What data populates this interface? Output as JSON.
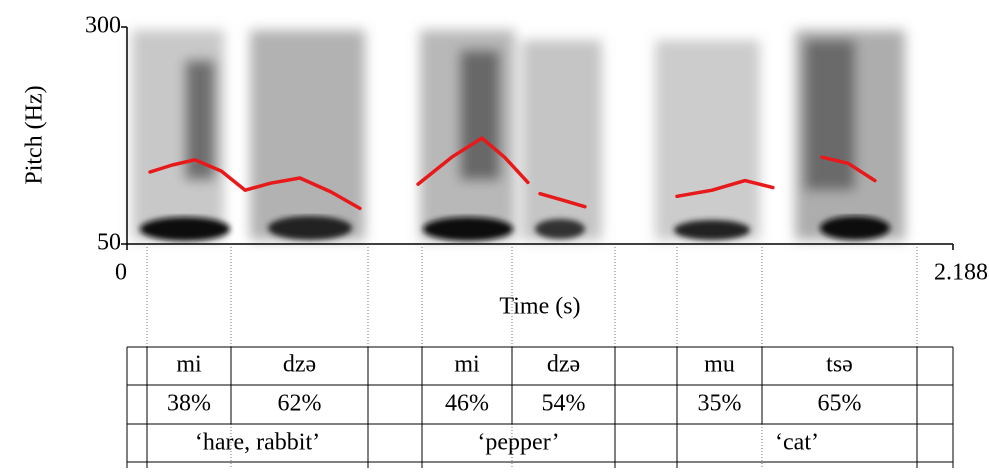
{
  "chart_data": {
    "type": "line",
    "xlabel": "Time (s)",
    "ylabel": "Pitch (Hz)",
    "xlim": [
      0,
      2.188
    ],
    "xticks": [
      0,
      2.188
    ],
    "ylim": [
      50,
      300
    ],
    "yticks": [
      50,
      300
    ],
    "x": [
      0.061,
      0.12,
      0.18,
      0.25,
      0.313,
      0.38,
      0.458,
      0.54,
      0.617,
      null,
      0.771,
      0.86,
      0.94,
      1.0,
      1.062,
      null,
      1.094,
      1.15,
      1.213,
      null,
      1.457,
      1.55,
      1.637,
      1.711,
      null,
      1.841,
      1.91,
      1.981
    ],
    "series": [
      {
        "color": "#e8191b",
        "values": [
          133,
          141,
          147,
          134,
          112,
          120,
          126,
          110,
          91,
          null,
          119,
          150,
          172,
          150,
          121,
          null,
          108,
          101,
          93,
          null,
          105,
          112,
          123,
          115,
          null,
          150,
          143,
          123
        ]
      }
    ]
  },
  "table": {
    "rows": [
      [
        "mi",
        "dzə",
        "mi",
        "dzə",
        "mu",
        "tsə"
      ],
      [
        "38%",
        "62%",
        "46%",
        "54%",
        "35%",
        "65%"
      ],
      [
        "‘hare, rabbit’",
        "‘pepper’",
        "‘cat’"
      ]
    ]
  }
}
